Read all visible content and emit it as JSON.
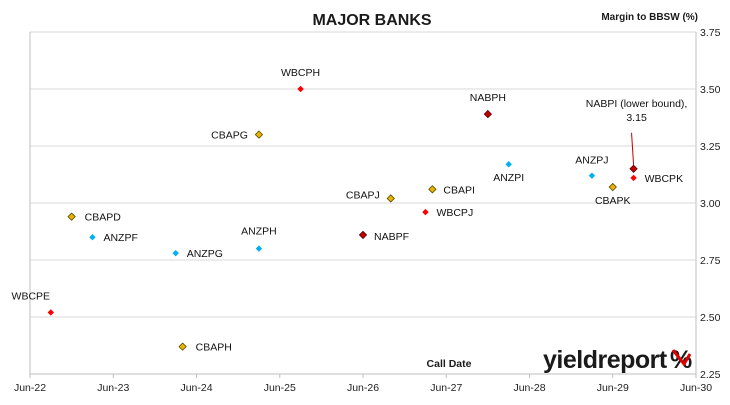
{
  "chart_data": {
    "type": "scatter",
    "title": "MAJOR BANKS",
    "ylabel": "Margin to BBSW (%)",
    "xlabel": "Call Date",
    "x_ticks": [
      "Jun-22",
      "Jun-23",
      "Jun-24",
      "Jun-25",
      "Jun-26",
      "Jun-27",
      "Jun-28",
      "Jun-29",
      "Jun-30"
    ],
    "xlim": [
      "2022-06",
      "2030-06"
    ],
    "ylim": [
      2.25,
      3.75
    ],
    "y_ticks": [
      "2.25",
      "2.50",
      "2.75",
      "3.00",
      "3.25",
      "3.50",
      "3.75"
    ],
    "y_axis_side": "right",
    "grid": "horizontal",
    "colors": {
      "WBC": "#ff0000",
      "CBA": "#e8b400",
      "ANZ": "#00b0f0",
      "NAB": "#c00000"
    },
    "points": [
      {
        "name": "WBCPE",
        "x": "2022-09",
        "y": 2.52,
        "bank": "WBC"
      },
      {
        "name": "CBAPD",
        "x": "2022-12",
        "y": 2.94,
        "bank": "CBA"
      },
      {
        "name": "ANZPF",
        "x": "2023-03",
        "y": 2.85,
        "bank": "ANZ"
      },
      {
        "name": "ANZPG",
        "x": "2024-03",
        "y": 2.78,
        "bank": "ANZ"
      },
      {
        "name": "CBAPH",
        "x": "2024-04",
        "y": 2.37,
        "bank": "CBA"
      },
      {
        "name": "ANZPH",
        "x": "2025-03",
        "y": 2.8,
        "bank": "ANZ"
      },
      {
        "name": "CBAPG",
        "x": "2025-03",
        "y": 3.3,
        "bank": "CBA"
      },
      {
        "name": "WBCPH",
        "x": "2025-09",
        "y": 3.5,
        "bank": "WBC"
      },
      {
        "name": "NABPF",
        "x": "2026-06",
        "y": 2.86,
        "bank": "NAB"
      },
      {
        "name": "CBAPJ",
        "x": "2026-10",
        "y": 3.02,
        "bank": "CBA"
      },
      {
        "name": "WBCPJ",
        "x": "2027-03",
        "y": 2.96,
        "bank": "WBC"
      },
      {
        "name": "CBAPI",
        "x": "2027-04",
        "y": 3.06,
        "bank": "CBA"
      },
      {
        "name": "NABPH",
        "x": "2027-12",
        "y": 3.39,
        "bank": "NAB"
      },
      {
        "name": "ANZPI",
        "x": "2028-03",
        "y": 3.17,
        "bank": "ANZ"
      },
      {
        "name": "ANZPJ",
        "x": "2029-03",
        "y": 3.12,
        "bank": "ANZ"
      },
      {
        "name": "CBAPK",
        "x": "2029-06",
        "y": 3.07,
        "bank": "CBA"
      },
      {
        "name": "NABPI",
        "x": "2029-09",
        "y": 3.15,
        "bank": "NAB"
      },
      {
        "name": "WBCPK",
        "x": "2029-09",
        "y": 3.11,
        "bank": "WBC"
      }
    ],
    "annotations": [
      {
        "target": "NABPI",
        "lines": [
          "NABPI (lower bound),",
          "3.15"
        ]
      }
    ]
  },
  "branding": {
    "text": "yieldreport",
    "symbol": "%"
  }
}
